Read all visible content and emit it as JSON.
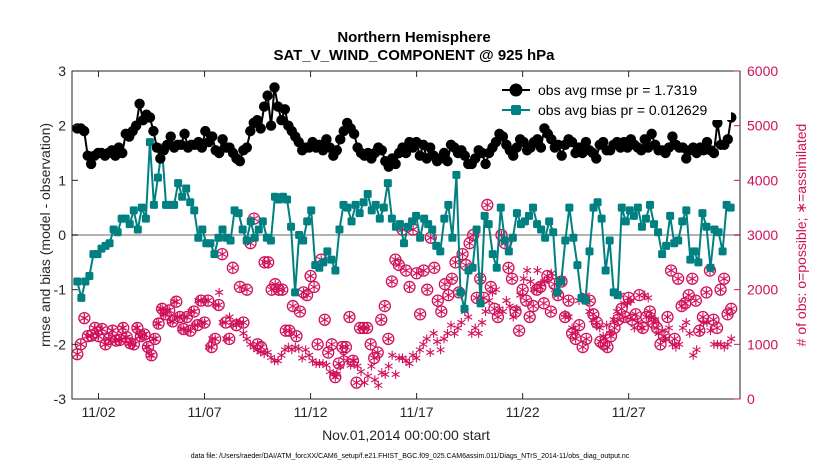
{
  "chart_data": {
    "type": "line",
    "title": "Northern Hemisphere",
    "subtitle": "SAT_V_WIND_COMPONENT @ 925 hPa",
    "xlabel": "Nov.01,2014 00:00:00 start",
    "ylabel_left": "rmse and bias (model - observation)",
    "ylabel_right": "# of obs: o=possible; ∗=assimilated",
    "footnote": "data file: /Users/raeder/DAI/ATM_forcXX/CAM6_setup/f.e21.FHIST_BGC.f09_025.CAM6assim.011/Diags_NTrS_2014-11/obs_diag_output.nc",
    "x_tick_labels": [
      "11/02",
      "11/07",
      "11/12",
      "11/17",
      "11/22",
      "11/27"
    ],
    "x_tick_days": [
      2,
      7,
      12,
      17,
      22,
      27
    ],
    "xlim": [
      0.75,
      32.25
    ],
    "ylim_left": [
      -3,
      3
    ],
    "y_ticks_left": [
      "-3",
      "-2",
      "-1",
      "0",
      "1",
      "2",
      "3"
    ],
    "ylim_right": [
      0,
      6000
    ],
    "y_ticks_right": [
      "0",
      "1000",
      "2000",
      "3000",
      "4000",
      "5000",
      "6000"
    ],
    "grid": false,
    "legend_position": "top-right",
    "colors": {
      "rmse": "#000000",
      "bias": "#008080",
      "obs": "#d0105a",
      "zero_line": "#b3b3b3"
    },
    "series": [
      {
        "name": "obs avg rmse pr = 1.7319",
        "axis": "left",
        "values": [
          1.95,
          1.95,
          1.9,
          1.45,
          1.3,
          1.45,
          1.5,
          1.5,
          1.45,
          1.5,
          1.55,
          1.45,
          1.6,
          1.5,
          1.85,
          1.8,
          1.9,
          2.0,
          2.4,
          2.1,
          2.2,
          2.15,
          1.9,
          1.6,
          1.4,
          1.55,
          1.65,
          1.8,
          1.6,
          1.65,
          1.65,
          1.85,
          1.6,
          1.65,
          1.65,
          1.7,
          1.6,
          1.9,
          1.7,
          1.8,
          1.55,
          1.5,
          1.75,
          1.6,
          1.6,
          1.5,
          1.4,
          1.35,
          1.55,
          1.6,
          1.9,
          2.05,
          2.1,
          1.95,
          2.35,
          2.55,
          2.0,
          2.7,
          2.35,
          2.1,
          2.3,
          2.0,
          1.9,
          1.8,
          1.7,
          1.55,
          1.6,
          1.6,
          1.7,
          1.6,
          1.65,
          1.55,
          1.75,
          1.6,
          1.45,
          1.55,
          1.75,
          1.9,
          2.05,
          1.95,
          1.85,
          1.6,
          1.5,
          1.45,
          1.5,
          1.4,
          1.5,
          1.6,
          1.55,
          1.35,
          1.25,
          1.4,
          1.3,
          1.5,
          1.6,
          1.5,
          1.7,
          1.6,
          1.7,
          1.45,
          1.65,
          1.4,
          1.6,
          1.45,
          1.35,
          1.4,
          1.5,
          1.35,
          1.65,
          1.6,
          1.5,
          1.55,
          1.45,
          1.3,
          1.3,
          1.4,
          1.55,
          1.5,
          1.3,
          1.5,
          1.6,
          1.7,
          1.85,
          1.8,
          1.65,
          1.55,
          1.45,
          1.6,
          1.75,
          1.7,
          1.55,
          1.6,
          1.7,
          1.75,
          1.6,
          1.95,
          1.85,
          1.75,
          1.6,
          1.65,
          1.45,
          1.65,
          1.75,
          1.7,
          1.5,
          1.6,
          1.5,
          1.7,
          1.55,
          1.5,
          1.4,
          1.65,
          1.7,
          1.55,
          1.55,
          1.65,
          1.7,
          1.6,
          1.7,
          1.6,
          1.75,
          1.65,
          1.6,
          1.55,
          1.75,
          1.6,
          1.85,
          1.65,
          1.55,
          1.55,
          1.5,
          1.6,
          1.8,
          1.65,
          1.6,
          1.6,
          1.4,
          1.55,
          1.6,
          1.5,
          1.6,
          1.55,
          1.7,
          1.55,
          1.5,
          2.05,
          1.65,
          1.65,
          1.75,
          2.15
        ]
      },
      {
        "name": "obs avg bias pr = 0.012629",
        "axis": "left",
        "values": [
          -0.85,
          -1.15,
          -0.85,
          -0.75,
          -0.35,
          -0.35,
          -0.25,
          -0.2,
          -0.15,
          0.1,
          0.05,
          0.3,
          0.3,
          0.2,
          0.45,
          0.1,
          0.5,
          0.3,
          1.7,
          0.55,
          1.05,
          1.6,
          0.55,
          0.55,
          0.55,
          0.95,
          0.7,
          0.85,
          0.6,
          0.45,
          -0.05,
          0.1,
          -0.15,
          -0.15,
          -0.35,
          -0.05,
          0.1,
          -0.05,
          -0.1,
          0.45,
          0.4,
          0.1,
          -0.1,
          0.25,
          -0.05,
          0.1,
          0.25,
          -0.05,
          -0.1,
          0.7,
          0.65,
          0.7,
          0.65,
          0.15,
          -1.05,
          0.0,
          -0.1,
          0.25,
          0.45,
          -0.55,
          -0.6,
          -0.5,
          -0.3,
          -0.45,
          -0.65,
          0.1,
          0.55,
          0.5,
          0.25,
          0.55,
          0.4,
          0.6,
          0.75,
          0.45,
          0.55,
          0.3,
          0.5,
          0.95,
          0.3,
          0.15,
          0.2,
          -0.15,
          0.15,
          0.25,
          0.35,
          -0.05,
          0.3,
          0.2,
          0.1,
          -0.2,
          -0.3,
          0.3,
          0.55,
          -0.05,
          1.1,
          -1.05,
          -1.35,
          -0.65,
          -0.6,
          0.1,
          -1.25,
          0.35,
          0.2,
          -0.35,
          -0.6,
          0.5,
          -0.1,
          -0.3,
          -0.05,
          0.4,
          0.2,
          0.25,
          0.35,
          0.5,
          0.2,
          0.1,
          -0.05,
          0.25,
          0.05,
          -1.05,
          -0.85,
          -0.1,
          0.5,
          -0.05,
          -0.55,
          -1.15,
          -1.2,
          -0.3,
          0.5,
          0.6,
          0.3,
          -0.65,
          -0.1,
          -1.05,
          -1.1,
          0.5,
          0.25,
          0.45,
          0.35,
          0.5,
          0.15,
          0.3,
          0.55,
          0.2,
          0.05,
          -0.35,
          -0.2,
          0.35,
          -0.15,
          -0.1,
          0.25,
          0.45,
          -0.45,
          -0.3,
          -0.5,
          0.4,
          0.15,
          -0.6,
          0.1,
          0.05,
          -0.3,
          0.55,
          0.5
        ]
      },
      {
        "name": "assimilated",
        "axis": "right",
        "values": [
          820,
          1000,
          1480,
          1150,
          1160,
          1300,
          1150,
          1280,
          1000,
          1100,
          1250,
          1070,
          1080,
          1300,
          1130,
          1020,
          1000,
          1300,
          1150,
          1180,
          950,
          800,
          1100,
          1380,
          1650,
          1550,
          1620,
          1420,
          1780,
          1500,
          1280,
          1500,
          1250,
          1600,
          1350,
          1800,
          1400,
          1800,
          950,
          1100,
          1720,
          1950,
          1400,
          1100,
          1500,
          1350,
          1400,
          1400,
          1200,
          1100,
          1000,
          950,
          900,
          860,
          830,
          850,
          760,
          700,
          700,
          800,
          900,
          950,
          900,
          950,
          920,
          750,
          900,
          800,
          700,
          650,
          650,
          650,
          620,
          500,
          450,
          450,
          600,
          800,
          700,
          620,
          700,
          600,
          500,
          300,
          420,
          600,
          350,
          250,
          480,
          450,
          600,
          800,
          450,
          750,
          750,
          700,
          650,
          800,
          750,
          900,
          1000,
          1100,
          850,
          1200,
          1050,
          900,
          1100,
          1200,
          1350,
          1200,
          1300,
          1400,
          1600,
          1500,
          1200,
          1300,
          1200,
          1400,
          1600,
          1800,
          1950,
          2000,
          1650,
          1600,
          1800,
          1700,
          1500,
          1650,
          1900,
          2200,
          2350,
          2150,
          2000,
          2350,
          2100,
          2150,
          2200,
          2300,
          2000,
          1900,
          2200,
          1550,
          1500,
          1300,
          1250,
          1800,
          1850,
          1900,
          1600,
          1450,
          1350,
          1300,
          1150,
          1350,
          1200,
          1450,
          1600,
          1900,
          1750,
          1750,
          1800,
          1300,
          1400,
          1300,
          1900,
          1850,
          1500,
          1450,
          1200,
          1250,
          1100,
          1300,
          1000,
          950,
          1000,
          1300,
          1400,
          1200,
          800,
          900,
          1250,
          1400,
          1400,
          1250,
          1000,
          1000,
          1000,
          950,
          1000,
          1100
        ]
      },
      {
        "name": "possible",
        "axis": "right",
        "values": [
          820,
          1000,
          1480,
          1150,
          1160,
          1300,
          1150,
          1280,
          1000,
          1100,
          1250,
          1070,
          1080,
          1300,
          1130,
          1020,
          1000,
          1300,
          1150,
          1180,
          950,
          800,
          1100,
          1380,
          1650,
          1550,
          1620,
          1420,
          1780,
          1500,
          1280,
          1500,
          1250,
          1600,
          1350,
          1800,
          1400,
          1800,
          950,
          1100,
          1720,
          2650,
          1400,
          1100,
          2400,
          1350,
          2050,
          1400,
          2000,
          2850,
          3300,
          1000,
          950,
          2500,
          2500,
          2000,
          2100,
          2000,
          2000,
          1250,
          1250,
          1700,
          1150,
          1600,
          1950,
          1900,
          2250,
          2050,
          1000,
          2550,
          1450,
          850,
          1000,
          400,
          650,
          950,
          950,
          1500,
          700,
          300,
          1300,
          1300,
          1300,
          1000,
          750,
          850,
          1450,
          1700,
          1100,
          2150,
          2550,
          2450,
          3100,
          2350,
          2050,
          3100,
          2300,
          1550,
          2350,
          2000,
          2950,
          2400,
          1800,
          1600,
          2100,
          1900,
          2200,
          2500,
          1950,
          2650,
          2450,
          2850,
          3000,
          1850,
          2200,
          1850,
          3550,
          2050,
          1650,
          1500,
          3000,
          2850,
          2400,
          2200,
          1600,
          1250,
          2000,
          1800,
          1500,
          1700,
          2000,
          2050,
          1750,
          2250,
          1600,
          2100,
          1900,
          2150,
          1500,
          1800,
          1200,
          1100,
          1350,
          950,
          1100,
          1800,
          1550,
          1400,
          1050,
          1000,
          950,
          1150,
          1300,
          1450,
          1650,
          1500,
          1850,
          1450,
          1550,
          1900,
          1300,
          1500,
          1600,
          1400,
          1300,
          1000,
          1150,
          1500,
          2350,
          1100,
          2200,
          1700,
          1750,
          1900,
          2200,
          1800,
          1250,
          1500,
          1950,
          2350,
          1450,
          1300,
          2000,
          2200,
          1550,
          1650
        ]
      }
    ],
    "legend": [
      "obs avg rmse pr = 1.7319",
      "obs avg bias pr = 0.012629"
    ]
  }
}
